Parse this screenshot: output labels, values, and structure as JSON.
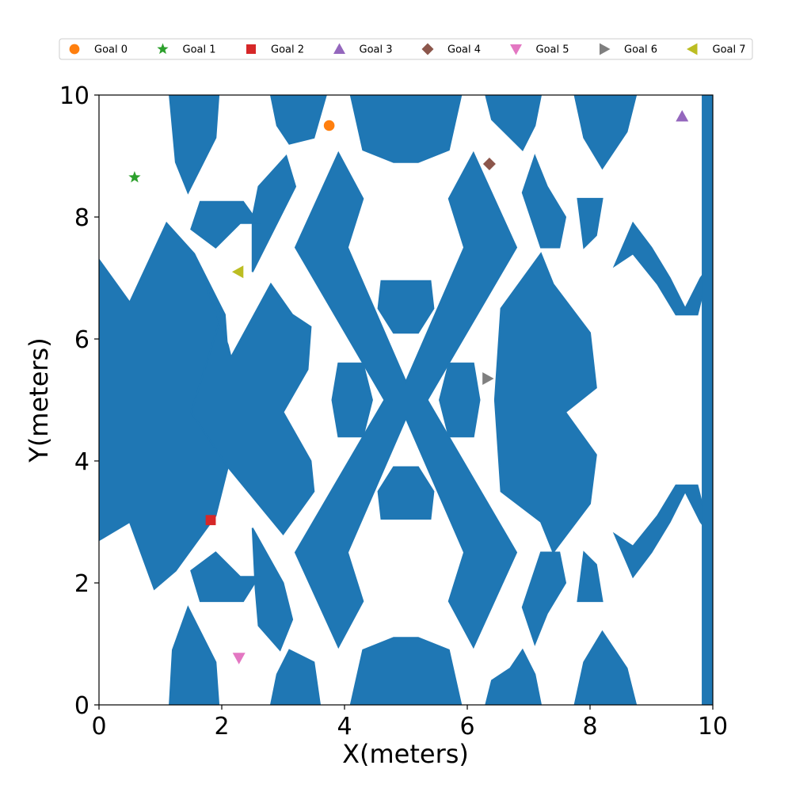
{
  "chart_data": {
    "type": "scatter",
    "title": "",
    "xlabel": "X(meters)",
    "ylabel": "Y(meters)",
    "xlim": [
      0,
      10
    ],
    "ylim": [
      0,
      10
    ],
    "xticks": [
      "0",
      "2",
      "4",
      "6",
      "8",
      "10"
    ],
    "yticks": [
      "0",
      "2",
      "4",
      "6",
      "8",
      "10"
    ],
    "grid": false,
    "legend_position": "top",
    "obstacle_color": "#1f77b4",
    "series": [
      {
        "name": "Goal 0",
        "marker": "circle",
        "color": "#ff7f0e",
        "x": 3.75,
        "y": 9.5
      },
      {
        "name": "Goal 1",
        "marker": "star",
        "color": "#2ca02c",
        "x": 0.58,
        "y": 8.65
      },
      {
        "name": "Goal 2",
        "marker": "square",
        "color": "#d62728",
        "x": 1.82,
        "y": 3.03
      },
      {
        "name": "Goal 3",
        "marker": "triangle-up",
        "color": "#9467bd",
        "x": 9.5,
        "y": 9.65
      },
      {
        "name": "Goal 4",
        "marker": "diamond",
        "color": "#8c564b",
        "x": 6.36,
        "y": 8.87
      },
      {
        "name": "Goal 5",
        "marker": "triangle-down",
        "color": "#e377c2",
        "x": 2.28,
        "y": 0.77
      },
      {
        "name": "Goal 6",
        "marker": "triangle-right",
        "color": "#7f7f7f",
        "x": 6.33,
        "y": 5.35
      },
      {
        "name": "Goal 7",
        "marker": "triangle-left",
        "color": "#bcbd22",
        "x": 2.27,
        "y": 7.1
      }
    ],
    "obstacles": [
      {
        "kind": "poly",
        "points": [
          [
            0,
            7.3
          ],
          [
            0.5,
            6.6
          ],
          [
            1.1,
            7.9
          ],
          [
            1.55,
            7.4
          ],
          [
            2.05,
            6.4
          ],
          [
            2.1,
            5.7
          ],
          [
            1.5,
            4.8
          ],
          [
            2.1,
            3.9
          ],
          [
            1.9,
            3.1
          ],
          [
            1.25,
            2.2
          ],
          [
            0.9,
            1.9
          ],
          [
            0.5,
            3.0
          ],
          [
            0,
            2.7
          ]
        ]
      },
      {
        "kind": "poly",
        "points": [
          [
            1.55,
            7.4
          ],
          [
            2.1,
            5.9
          ],
          [
            2.15,
            5.7
          ],
          [
            2.8,
            6.9
          ],
          [
            3.15,
            6.4
          ],
          [
            3.45,
            6.2
          ],
          [
            3.4,
            5.5
          ],
          [
            3.0,
            4.8
          ],
          [
            3.45,
            4.0
          ],
          [
            3.5,
            3.5
          ],
          [
            3.0,
            2.8
          ],
          [
            2.1,
            3.9
          ],
          [
            1.5,
            4.8
          ],
          [
            2.0,
            6.4
          ]
        ]
      },
      {
        "kind": "poly",
        "points": [
          [
            1.15,
            10
          ],
          [
            1.95,
            10
          ],
          [
            1.9,
            9.3
          ],
          [
            1.45,
            8.4
          ],
          [
            1.25,
            8.9
          ]
        ]
      },
      {
        "kind": "poly",
        "points": [
          [
            1.15,
            0
          ],
          [
            1.95,
            0
          ],
          [
            1.9,
            0.7
          ],
          [
            1.45,
            1.6
          ],
          [
            1.2,
            0.9
          ]
        ]
      },
      {
        "kind": "poly",
        "points": [
          [
            2.8,
            10
          ],
          [
            3.7,
            10
          ],
          [
            3.5,
            9.3
          ],
          [
            3.1,
            9.2
          ],
          [
            2.9,
            9.5
          ]
        ]
      },
      {
        "kind": "poly",
        "points": [
          [
            2.8,
            0
          ],
          [
            3.6,
            0
          ],
          [
            3.5,
            0.7
          ],
          [
            3.1,
            0.9
          ],
          [
            2.9,
            0.5
          ]
        ]
      },
      {
        "kind": "poly",
        "points": [
          [
            2.5,
            8.0
          ],
          [
            2.6,
            8.5
          ],
          [
            3.05,
            9.0
          ],
          [
            3.2,
            8.5
          ],
          [
            2.9,
            7.9
          ],
          [
            2.5,
            7.1
          ]
        ]
      },
      {
        "kind": "poly",
        "points": [
          [
            2.55,
            1.9
          ],
          [
            2.6,
            1.3
          ],
          [
            2.95,
            0.9
          ],
          [
            3.15,
            1.4
          ],
          [
            3.0,
            2.0
          ],
          [
            2.5,
            2.9
          ]
        ]
      },
      {
        "kind": "poly",
        "points": [
          [
            1.5,
            7.8
          ],
          [
            1.65,
            8.25
          ],
          [
            2.35,
            8.25
          ],
          [
            2.6,
            7.9
          ],
          [
            2.3,
            7.9
          ],
          [
            1.9,
            7.5
          ]
        ]
      },
      {
        "kind": "poly",
        "points": [
          [
            1.5,
            2.2
          ],
          [
            1.65,
            1.7
          ],
          [
            2.35,
            1.7
          ],
          [
            2.6,
            2.1
          ],
          [
            2.3,
            2.1
          ],
          [
            1.9,
            2.5
          ]
        ]
      },
      {
        "kind": "poly",
        "points": [
          [
            4.1,
            10
          ],
          [
            5.9,
            10
          ],
          [
            5.7,
            9.1
          ],
          [
            5.2,
            8.9
          ],
          [
            4.8,
            8.9
          ],
          [
            4.3,
            9.1
          ]
        ]
      },
      {
        "kind": "poly",
        "points": [
          [
            4.1,
            0
          ],
          [
            5.9,
            0
          ],
          [
            5.7,
            0.9
          ],
          [
            5.2,
            1.1
          ],
          [
            4.8,
            1.1
          ],
          [
            4.3,
            0.9
          ]
        ]
      },
      {
        "kind": "poly",
        "points": [
          [
            3.2,
            7.5
          ],
          [
            3.9,
            9.05
          ],
          [
            4.3,
            8.3
          ],
          [
            4.05,
            7.5
          ],
          [
            5.0,
            5.3
          ],
          [
            5.95,
            7.5
          ],
          [
            5.7,
            8.3
          ],
          [
            6.1,
            9.05
          ],
          [
            6.8,
            7.5
          ],
          [
            5.35,
            5.0
          ],
          [
            6.8,
            2.5
          ],
          [
            6.1,
            0.95
          ],
          [
            5.7,
            1.7
          ],
          [
            5.95,
            2.5
          ],
          [
            5.0,
            4.7
          ],
          [
            4.05,
            2.5
          ],
          [
            4.3,
            1.7
          ],
          [
            3.9,
            0.95
          ],
          [
            3.2,
            2.5
          ],
          [
            4.65,
            5.0
          ]
        ]
      },
      {
        "kind": "poly",
        "points": [
          [
            4.55,
            6.5
          ],
          [
            4.6,
            6.95
          ],
          [
            5.4,
            6.95
          ],
          [
            5.45,
            6.5
          ],
          [
            5.2,
            6.1
          ],
          [
            4.8,
            6.1
          ]
        ]
      },
      {
        "kind": "poly",
        "points": [
          [
            4.55,
            3.5
          ],
          [
            4.6,
            3.05
          ],
          [
            5.4,
            3.05
          ],
          [
            5.45,
            3.5
          ],
          [
            5.2,
            3.9
          ],
          [
            4.8,
            3.9
          ]
        ]
      },
      {
        "kind": "poly",
        "points": [
          [
            3.9,
            5.6
          ],
          [
            4.3,
            5.6
          ],
          [
            4.45,
            5.0
          ],
          [
            4.3,
            4.4
          ],
          [
            3.9,
            4.4
          ],
          [
            3.8,
            5.0
          ]
        ]
      },
      {
        "kind": "poly",
        "points": [
          [
            6.1,
            5.6
          ],
          [
            5.7,
            5.6
          ],
          [
            5.55,
            5.0
          ],
          [
            5.7,
            4.4
          ],
          [
            6.1,
            4.4
          ],
          [
            6.2,
            5.0
          ]
        ]
      },
      {
        "kind": "poly",
        "points": [
          [
            6.3,
            10
          ],
          [
            7.2,
            10
          ],
          [
            7.1,
            9.5
          ],
          [
            6.9,
            9.1
          ],
          [
            6.7,
            9.3
          ],
          [
            6.4,
            9.6
          ]
        ]
      },
      {
        "kind": "poly",
        "points": [
          [
            6.3,
            0
          ],
          [
            7.2,
            0
          ],
          [
            7.1,
            0.5
          ],
          [
            6.9,
            0.9
          ],
          [
            6.7,
            0.6
          ],
          [
            6.4,
            0.4
          ]
        ]
      },
      {
        "kind": "poly",
        "points": [
          [
            6.55,
            6.5
          ],
          [
            7.2,
            7.4
          ],
          [
            7.4,
            6.9
          ],
          [
            8.0,
            6.1
          ],
          [
            8.1,
            5.2
          ],
          [
            7.6,
            4.8
          ],
          [
            8.1,
            4.1
          ],
          [
            8.0,
            3.3
          ],
          [
            7.4,
            2.5
          ],
          [
            7.2,
            3.0
          ],
          [
            6.55,
            3.5
          ],
          [
            6.45,
            5.0
          ]
        ]
      },
      {
        "kind": "poly",
        "points": [
          [
            7.3,
            8.5
          ],
          [
            7.1,
            9.0
          ],
          [
            6.9,
            8.4
          ],
          [
            7.2,
            7.5
          ],
          [
            7.5,
            7.5
          ],
          [
            7.6,
            8.0
          ]
        ]
      },
      {
        "kind": "poly",
        "points": [
          [
            7.3,
            1.5
          ],
          [
            7.1,
            1.0
          ],
          [
            6.9,
            1.6
          ],
          [
            7.2,
            2.5
          ],
          [
            7.5,
            2.5
          ],
          [
            7.6,
            2.0
          ]
        ]
      },
      {
        "kind": "poly",
        "points": [
          [
            7.75,
            10
          ],
          [
            8.75,
            10
          ],
          [
            8.6,
            9.4
          ],
          [
            8.2,
            8.8
          ],
          [
            7.9,
            9.3
          ]
        ]
      },
      {
        "kind": "poly",
        "points": [
          [
            7.75,
            0
          ],
          [
            8.75,
            0
          ],
          [
            8.6,
            0.6
          ],
          [
            8.2,
            1.2
          ],
          [
            7.9,
            0.7
          ]
        ]
      },
      {
        "kind": "poly",
        "points": [
          [
            8.4,
            7.2
          ],
          [
            8.7,
            7.9
          ],
          [
            9.0,
            7.5
          ],
          [
            9.3,
            7.0
          ],
          [
            9.55,
            6.5
          ],
          [
            9.8,
            7.0
          ],
          [
            9.95,
            7.2
          ],
          [
            9.75,
            6.4
          ],
          [
            9.4,
            6.4
          ],
          [
            9.1,
            6.9
          ],
          [
            8.7,
            7.4
          ]
        ]
      },
      {
        "kind": "poly",
        "points": [
          [
            8.4,
            2.8
          ],
          [
            8.7,
            2.1
          ],
          [
            9.0,
            2.5
          ],
          [
            9.3,
            3.0
          ],
          [
            9.55,
            3.5
          ],
          [
            9.8,
            3.0
          ],
          [
            9.95,
            2.8
          ],
          [
            9.75,
            3.6
          ],
          [
            9.4,
            3.6
          ],
          [
            9.1,
            3.1
          ],
          [
            8.7,
            2.6
          ]
        ]
      },
      {
        "kind": "poly",
        "points": [
          [
            7.8,
            8.3
          ],
          [
            8.2,
            8.3
          ],
          [
            8.1,
            7.7
          ],
          [
            7.9,
            7.5
          ]
        ]
      },
      {
        "kind": "poly",
        "points": [
          [
            7.8,
            1.7
          ],
          [
            8.2,
            1.7
          ],
          [
            8.1,
            2.3
          ],
          [
            7.9,
            2.5
          ]
        ]
      },
      {
        "kind": "rect",
        "x0": 9.82,
        "x1": 10.0,
        "y0": 0.0,
        "y1": 10.0
      }
    ]
  }
}
